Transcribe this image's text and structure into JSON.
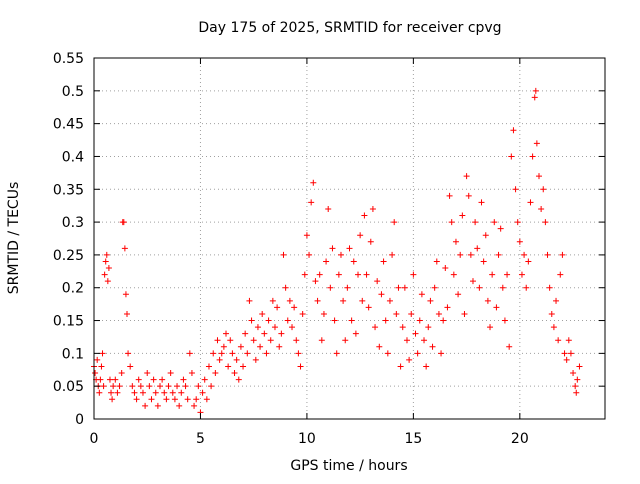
{
  "chart_data": {
    "type": "scatter",
    "title": "Day 175 of 2025, SRMTID for receiver cpvg",
    "xlabel": "GPS time / hours",
    "ylabel": "SRMTID / TECUs",
    "xlim": [
      0,
      24
    ],
    "ylim": [
      0,
      0.55
    ],
    "grid": true,
    "marker": "+",
    "colors": {
      "series": "#ff0000",
      "grid": "#a0a0a0",
      "axis": "#000000"
    },
    "x_ticks": [
      {
        "value": 0,
        "label": "0"
      },
      {
        "value": 5,
        "label": "5"
      },
      {
        "value": 10,
        "label": "10"
      },
      {
        "value": 15,
        "label": "15"
      },
      {
        "value": 20,
        "label": "20"
      }
    ],
    "y_ticks": [
      {
        "value": 0,
        "label": "0"
      },
      {
        "value": 0.05,
        "label": "0.05"
      },
      {
        "value": 0.1,
        "label": "0.1"
      },
      {
        "value": 0.15,
        "label": "0.15"
      },
      {
        "value": 0.2,
        "label": "0.2"
      },
      {
        "value": 0.25,
        "label": "0.25"
      },
      {
        "value": 0.3,
        "label": "0.3"
      },
      {
        "value": 0.35,
        "label": "0.35"
      },
      {
        "value": 0.4,
        "label": "0.4"
      },
      {
        "value": 0.45,
        "label": "0.45"
      },
      {
        "value": 0.5,
        "label": "0.5"
      },
      {
        "value": 0.55,
        "label": "0.55"
      }
    ],
    "series": [
      {
        "name": "SRMTID",
        "points": [
          [
            0.0,
            0.08
          ],
          [
            0.05,
            0.07
          ],
          [
            0.1,
            0.06
          ],
          [
            0.15,
            0.09
          ],
          [
            0.2,
            0.05
          ],
          [
            0.25,
            0.04
          ],
          [
            0.3,
            0.06
          ],
          [
            0.35,
            0.08
          ],
          [
            0.4,
            0.1
          ],
          [
            0.45,
            0.05
          ],
          [
            0.5,
            0.22
          ],
          [
            0.55,
            0.24
          ],
          [
            0.6,
            0.25
          ],
          [
            0.65,
            0.21
          ],
          [
            0.7,
            0.23
          ],
          [
            0.75,
            0.06
          ],
          [
            0.8,
            0.04
          ],
          [
            0.85,
            0.03
          ],
          [
            0.9,
            0.05
          ],
          [
            1.0,
            0.06
          ],
          [
            1.1,
            0.04
          ],
          [
            1.2,
            0.05
          ],
          [
            1.3,
            0.07
          ],
          [
            1.35,
            0.3
          ],
          [
            1.4,
            0.3
          ],
          [
            1.45,
            0.26
          ],
          [
            1.5,
            0.19
          ],
          [
            1.55,
            0.16
          ],
          [
            1.6,
            0.1
          ],
          [
            1.7,
            0.08
          ],
          [
            1.8,
            0.05
          ],
          [
            1.9,
            0.04
          ],
          [
            2.0,
            0.03
          ],
          [
            2.1,
            0.06
          ],
          [
            2.2,
            0.05
          ],
          [
            2.3,
            0.04
          ],
          [
            2.4,
            0.02
          ],
          [
            2.5,
            0.07
          ],
          [
            2.6,
            0.05
          ],
          [
            2.7,
            0.03
          ],
          [
            2.8,
            0.06
          ],
          [
            2.9,
            0.04
          ],
          [
            3.0,
            0.02
          ],
          [
            3.1,
            0.05
          ],
          [
            3.2,
            0.06
          ],
          [
            3.3,
            0.04
          ],
          [
            3.4,
            0.03
          ],
          [
            3.5,
            0.05
          ],
          [
            3.6,
            0.07
          ],
          [
            3.7,
            0.04
          ],
          [
            3.8,
            0.03
          ],
          [
            3.9,
            0.05
          ],
          [
            4.0,
            0.02
          ],
          [
            4.1,
            0.04
          ],
          [
            4.2,
            0.06
          ],
          [
            4.3,
            0.05
          ],
          [
            4.4,
            0.03
          ],
          [
            4.5,
            0.1
          ],
          [
            4.6,
            0.07
          ],
          [
            4.7,
            0.02
          ],
          [
            4.8,
            0.03
          ],
          [
            4.9,
            0.05
          ],
          [
            5.0,
            0.01
          ],
          [
            5.1,
            0.04
          ],
          [
            5.2,
            0.06
          ],
          [
            5.3,
            0.03
          ],
          [
            5.4,
            0.08
          ],
          [
            5.5,
            0.05
          ],
          [
            5.6,
            0.1
          ],
          [
            5.7,
            0.07
          ],
          [
            5.8,
            0.12
          ],
          [
            5.9,
            0.09
          ],
          [
            6.0,
            0.1
          ],
          [
            6.1,
            0.11
          ],
          [
            6.2,
            0.13
          ],
          [
            6.3,
            0.08
          ],
          [
            6.4,
            0.12
          ],
          [
            6.5,
            0.1
          ],
          [
            6.6,
            0.07
          ],
          [
            6.7,
            0.09
          ],
          [
            6.8,
            0.06
          ],
          [
            6.9,
            0.11
          ],
          [
            7.0,
            0.08
          ],
          [
            7.1,
            0.13
          ],
          [
            7.2,
            0.1
          ],
          [
            7.3,
            0.18
          ],
          [
            7.4,
            0.15
          ],
          [
            7.5,
            0.12
          ],
          [
            7.6,
            0.09
          ],
          [
            7.7,
            0.14
          ],
          [
            7.8,
            0.11
          ],
          [
            7.9,
            0.16
          ],
          [
            8.0,
            0.13
          ],
          [
            8.1,
            0.1
          ],
          [
            8.2,
            0.15
          ],
          [
            8.3,
            0.12
          ],
          [
            8.4,
            0.18
          ],
          [
            8.5,
            0.14
          ],
          [
            8.6,
            0.17
          ],
          [
            8.7,
            0.11
          ],
          [
            8.8,
            0.13
          ],
          [
            8.9,
            0.25
          ],
          [
            9.0,
            0.2
          ],
          [
            9.1,
            0.15
          ],
          [
            9.2,
            0.18
          ],
          [
            9.3,
            0.14
          ],
          [
            9.4,
            0.17
          ],
          [
            9.5,
            0.12
          ],
          [
            9.6,
            0.1
          ],
          [
            9.7,
            0.08
          ],
          [
            9.8,
            0.16
          ],
          [
            9.9,
            0.22
          ],
          [
            10.0,
            0.28
          ],
          [
            10.1,
            0.25
          ],
          [
            10.2,
            0.33
          ],
          [
            10.3,
            0.36
          ],
          [
            10.4,
            0.21
          ],
          [
            10.5,
            0.18
          ],
          [
            10.6,
            0.22
          ],
          [
            10.7,
            0.12
          ],
          [
            10.8,
            0.16
          ],
          [
            10.9,
            0.24
          ],
          [
            11.0,
            0.32
          ],
          [
            11.1,
            0.2
          ],
          [
            11.2,
            0.26
          ],
          [
            11.3,
            0.15
          ],
          [
            11.4,
            0.1
          ],
          [
            11.5,
            0.22
          ],
          [
            11.6,
            0.25
          ],
          [
            11.7,
            0.18
          ],
          [
            11.8,
            0.12
          ],
          [
            11.9,
            0.2
          ],
          [
            12.0,
            0.26
          ],
          [
            12.1,
            0.15
          ],
          [
            12.2,
            0.24
          ],
          [
            12.3,
            0.13
          ],
          [
            12.4,
            0.22
          ],
          [
            12.5,
            0.28
          ],
          [
            12.6,
            0.18
          ],
          [
            12.7,
            0.31
          ],
          [
            12.8,
            0.22
          ],
          [
            12.9,
            0.17
          ],
          [
            13.0,
            0.27
          ],
          [
            13.1,
            0.32
          ],
          [
            13.2,
            0.14
          ],
          [
            13.3,
            0.21
          ],
          [
            13.4,
            0.11
          ],
          [
            13.5,
            0.19
          ],
          [
            13.6,
            0.24
          ],
          [
            13.7,
            0.15
          ],
          [
            13.8,
            0.1
          ],
          [
            13.9,
            0.18
          ],
          [
            14.0,
            0.25
          ],
          [
            14.1,
            0.3
          ],
          [
            14.2,
            0.16
          ],
          [
            14.3,
            0.2
          ],
          [
            14.4,
            0.08
          ],
          [
            14.5,
            0.14
          ],
          [
            14.6,
            0.2
          ],
          [
            14.7,
            0.12
          ],
          [
            14.8,
            0.09
          ],
          [
            14.9,
            0.16
          ],
          [
            15.0,
            0.22
          ],
          [
            15.1,
            0.13
          ],
          [
            15.2,
            0.1
          ],
          [
            15.3,
            0.15
          ],
          [
            15.4,
            0.19
          ],
          [
            15.5,
            0.12
          ],
          [
            15.6,
            0.08
          ],
          [
            15.7,
            0.14
          ],
          [
            15.8,
            0.18
          ],
          [
            15.9,
            0.11
          ],
          [
            16.0,
            0.2
          ],
          [
            16.1,
            0.24
          ],
          [
            16.2,
            0.16
          ],
          [
            16.3,
            0.1
          ],
          [
            16.4,
            0.15
          ],
          [
            16.5,
            0.23
          ],
          [
            16.6,
            0.17
          ],
          [
            16.7,
            0.34
          ],
          [
            16.8,
            0.3
          ],
          [
            16.9,
            0.22
          ],
          [
            17.0,
            0.27
          ],
          [
            17.1,
            0.19
          ],
          [
            17.2,
            0.25
          ],
          [
            17.3,
            0.31
          ],
          [
            17.4,
            0.16
          ],
          [
            17.5,
            0.37
          ],
          [
            17.6,
            0.34
          ],
          [
            17.7,
            0.25
          ],
          [
            17.8,
            0.21
          ],
          [
            17.9,
            0.3
          ],
          [
            18.0,
            0.26
          ],
          [
            18.1,
            0.2
          ],
          [
            18.2,
            0.33
          ],
          [
            18.3,
            0.24
          ],
          [
            18.4,
            0.28
          ],
          [
            18.5,
            0.18
          ],
          [
            18.6,
            0.14
          ],
          [
            18.7,
            0.22
          ],
          [
            18.8,
            0.3
          ],
          [
            18.9,
            0.17
          ],
          [
            19.0,
            0.25
          ],
          [
            19.1,
            0.29
          ],
          [
            19.2,
            0.2
          ],
          [
            19.3,
            0.15
          ],
          [
            19.4,
            0.22
          ],
          [
            19.5,
            0.11
          ],
          [
            19.6,
            0.4
          ],
          [
            19.7,
            0.44
          ],
          [
            19.8,
            0.35
          ],
          [
            19.9,
            0.3
          ],
          [
            20.0,
            0.27
          ],
          [
            20.1,
            0.22
          ],
          [
            20.2,
            0.25
          ],
          [
            20.3,
            0.2
          ],
          [
            20.4,
            0.24
          ],
          [
            20.5,
            0.33
          ],
          [
            20.6,
            0.4
          ],
          [
            20.7,
            0.49
          ],
          [
            20.75,
            0.5
          ],
          [
            20.8,
            0.42
          ],
          [
            20.9,
            0.37
          ],
          [
            21.0,
            0.32
          ],
          [
            21.1,
            0.35
          ],
          [
            21.2,
            0.3
          ],
          [
            21.3,
            0.25
          ],
          [
            21.4,
            0.2
          ],
          [
            21.5,
            0.16
          ],
          [
            21.6,
            0.14
          ],
          [
            21.7,
            0.18
          ],
          [
            21.8,
            0.12
          ],
          [
            21.9,
            0.22
          ],
          [
            22.0,
            0.25
          ],
          [
            22.1,
            0.1
          ],
          [
            22.2,
            0.09
          ],
          [
            22.3,
            0.12
          ],
          [
            22.4,
            0.1
          ],
          [
            22.5,
            0.07
          ],
          [
            22.6,
            0.05
          ],
          [
            22.65,
            0.04
          ],
          [
            22.7,
            0.06
          ],
          [
            22.8,
            0.08
          ]
        ]
      }
    ]
  }
}
